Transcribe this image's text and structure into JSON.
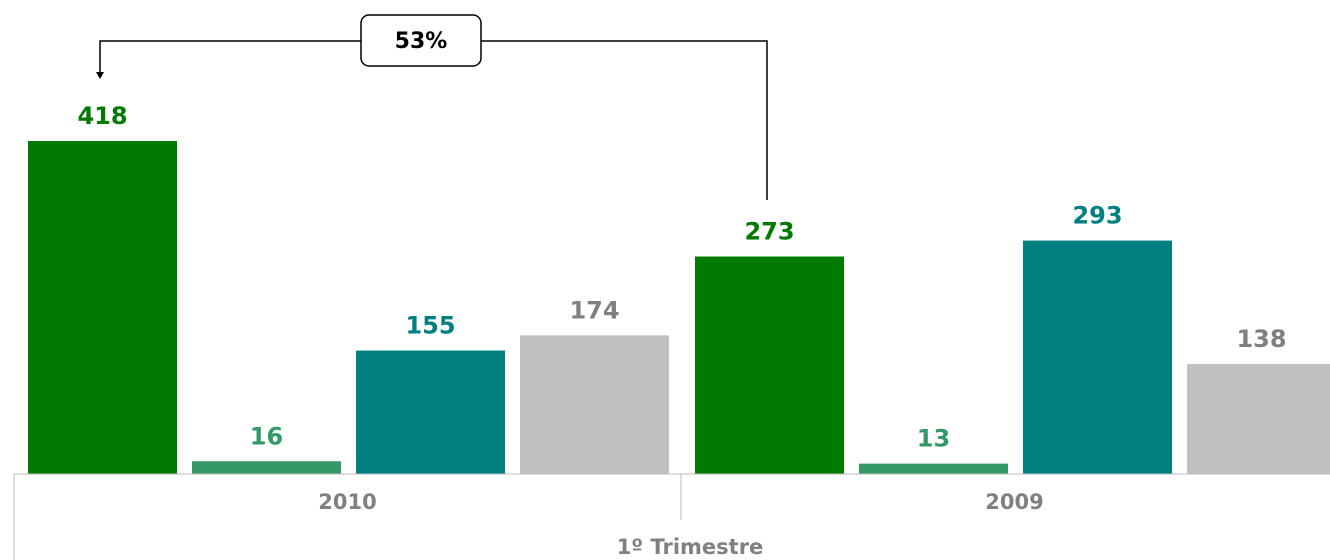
{
  "chart_data": {
    "type": "bar",
    "categories": [
      "2010",
      "2009"
    ],
    "series": [
      {
        "color": "#007a00",
        "label_color": "#007a00",
        "values": [
          418,
          273
        ]
      },
      {
        "color": "#339966",
        "label_color": "#339966",
        "values": [
          16,
          13
        ]
      },
      {
        "color": "#008080",
        "label_color": "#008080",
        "values": [
          155,
          293
        ]
      },
      {
        "color": "#c0c0c0",
        "label_color": "#808080",
        "values": [
          174,
          138
        ]
      }
    ],
    "x_label": "1º Trimestre",
    "annotation": "53%"
  }
}
